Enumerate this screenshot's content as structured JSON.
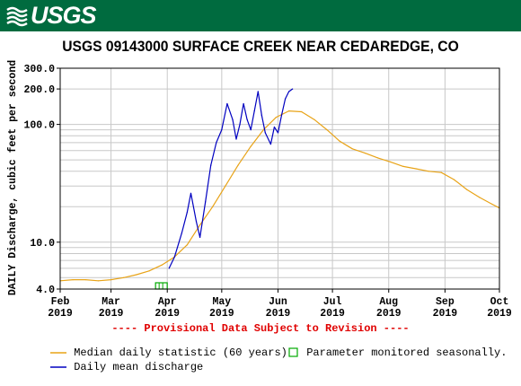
{
  "header": {
    "logo_text": "USGS",
    "brand_color": "#006b3f"
  },
  "chart_data": {
    "type": "line",
    "title": "USGS 09143000 SURFACE CREEK NEAR CEDAREDGE, CO",
    "ylabel": "DAILY Discharge, cubic feet per second",
    "xlabel": "",
    "y_scale": "log",
    "ylim": [
      4.0,
      300.0
    ],
    "xlim": [
      "2019-02-01",
      "2019-10-01"
    ],
    "grid": true,
    "y_ticks": [
      {
        "value": 300,
        "label": "300.0"
      },
      {
        "value": 200,
        "label": "200.0"
      },
      {
        "value": 100,
        "label": "100.0"
      },
      {
        "value": 10,
        "label": "10.0"
      },
      {
        "value": 4,
        "label": "4.0"
      }
    ],
    "x_ticks": [
      {
        "date": "2019-02-01",
        "month": "Feb",
        "year": "2019"
      },
      {
        "date": "2019-03-01",
        "month": "Mar",
        "year": "2019"
      },
      {
        "date": "2019-04-01",
        "month": "Apr",
        "year": "2019"
      },
      {
        "date": "2019-05-01",
        "month": "May",
        "year": "2019"
      },
      {
        "date": "2019-06-01",
        "month": "Jun",
        "year": "2019"
      },
      {
        "date": "2019-07-01",
        "month": "Jul",
        "year": "2019"
      },
      {
        "date": "2019-08-01",
        "month": "Aug",
        "year": "2019"
      },
      {
        "date": "2019-09-01",
        "month": "Sep",
        "year": "2019"
      },
      {
        "date": "2019-10-01",
        "month": "Oct",
        "year": "2019"
      }
    ],
    "series": [
      {
        "name": "Median daily statistic (60 years)",
        "color": "#e8a317",
        "points": [
          [
            "2019-02-01",
            4.7
          ],
          [
            "2019-02-08",
            4.8
          ],
          [
            "2019-02-15",
            4.8
          ],
          [
            "2019-02-22",
            4.7
          ],
          [
            "2019-03-01",
            4.8
          ],
          [
            "2019-03-08",
            5.0
          ],
          [
            "2019-03-15",
            5.3
          ],
          [
            "2019-03-22",
            5.7
          ],
          [
            "2019-03-29",
            6.4
          ],
          [
            "2019-04-05",
            7.5
          ],
          [
            "2019-04-12",
            9.5
          ],
          [
            "2019-04-19",
            14.0
          ],
          [
            "2019-04-26",
            20.0
          ],
          [
            "2019-05-03",
            30.0
          ],
          [
            "2019-05-10",
            45.0
          ],
          [
            "2019-05-17",
            65.0
          ],
          [
            "2019-05-24",
            90.0
          ],
          [
            "2019-05-31",
            115.0
          ],
          [
            "2019-06-07",
            130.0
          ],
          [
            "2019-06-14",
            128.0
          ],
          [
            "2019-06-21",
            110.0
          ],
          [
            "2019-06-28",
            90.0
          ],
          [
            "2019-07-05",
            72.0
          ],
          [
            "2019-07-12",
            62.0
          ],
          [
            "2019-07-19",
            57.0
          ],
          [
            "2019-07-26",
            52.0
          ],
          [
            "2019-08-02",
            48.0
          ],
          [
            "2019-08-09",
            44.0
          ],
          [
            "2019-08-16",
            42.0
          ],
          [
            "2019-08-23",
            40.0
          ],
          [
            "2019-08-30",
            39.0
          ],
          [
            "2019-09-06",
            34.0
          ],
          [
            "2019-09-13",
            28.0
          ],
          [
            "2019-09-20",
            24.0
          ],
          [
            "2019-09-27",
            21.0
          ],
          [
            "2019-10-01",
            19.5
          ]
        ]
      },
      {
        "name": "Daily mean discharge",
        "color": "#0000c0",
        "points": [
          [
            "2019-04-02",
            6.0
          ],
          [
            "2019-04-05",
            7.5
          ],
          [
            "2019-04-09",
            12.0
          ],
          [
            "2019-04-12",
            18.0
          ],
          [
            "2019-04-14",
            26.0
          ],
          [
            "2019-04-17",
            15.0
          ],
          [
            "2019-04-19",
            11.0
          ],
          [
            "2019-04-22",
            22.0
          ],
          [
            "2019-04-25",
            45.0
          ],
          [
            "2019-04-28",
            70.0
          ],
          [
            "2019-05-01",
            90.0
          ],
          [
            "2019-05-04",
            150.0
          ],
          [
            "2019-05-07",
            110.0
          ],
          [
            "2019-05-09",
            75.0
          ],
          [
            "2019-05-11",
            100.0
          ],
          [
            "2019-05-13",
            150.0
          ],
          [
            "2019-05-15",
            110.0
          ],
          [
            "2019-05-17",
            90.0
          ],
          [
            "2019-05-19",
            130.0
          ],
          [
            "2019-05-21",
            190.0
          ],
          [
            "2019-05-23",
            120.0
          ],
          [
            "2019-05-25",
            85.0
          ],
          [
            "2019-05-28",
            68.0
          ],
          [
            "2019-05-30",
            95.0
          ],
          [
            "2019-06-01",
            85.0
          ],
          [
            "2019-06-03",
            120.0
          ],
          [
            "2019-06-05",
            165.0
          ],
          [
            "2019-06-07",
            190.0
          ],
          [
            "2019-06-09",
            200.0
          ]
        ]
      }
    ],
    "seasonal_marker": {
      "label": "Parameter monitored seasonally.",
      "color": "#00aa00",
      "date": "2019-03-29"
    }
  },
  "footer": {
    "provisional_text": "---- Provisional Data Subject to Revision ----",
    "legend": {
      "median_label": "Median daily statistic (60 years)",
      "seasonal_label": "Parameter monitored seasonally.",
      "daily_label": "Daily mean discharge"
    }
  }
}
